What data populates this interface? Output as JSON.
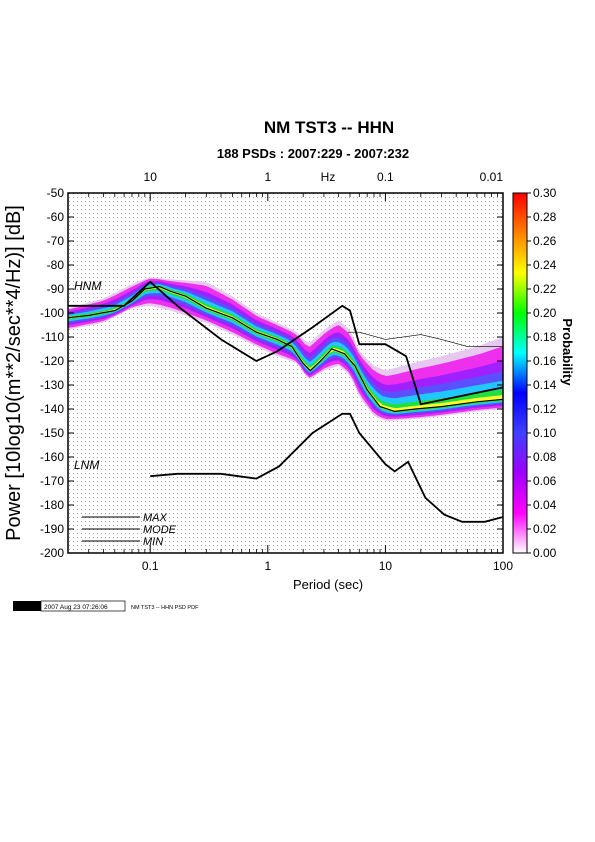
{
  "chart_data": {
    "type": "heatmap",
    "title": "NM TST3 -- HHN",
    "subtitle": "188 PSDs : 2007:229 - 2007:232",
    "xlabel": "Period (sec)",
    "ylabel": "Power [10log10(m**2/sec**4/Hz)] [dB]",
    "x_scale": "log",
    "xlim": [
      0.02,
      100
    ],
    "ylim": [
      -200,
      -50
    ],
    "x_ticks": [
      0.1,
      1,
      10,
      100
    ],
    "x_tick_labels": [
      "0.1",
      "1",
      "10",
      "100"
    ],
    "y_ticks": [
      -200,
      -190,
      -180,
      -170,
      -160,
      -150,
      -140,
      -130,
      -120,
      -110,
      -100,
      -90,
      -80,
      -70,
      -60,
      -50
    ],
    "y_tick_labels": [
      "-200",
      "-190",
      "-180",
      "-170",
      "-160",
      "-150",
      "-140",
      "-130",
      "-120",
      "-110",
      "-100",
      "-90",
      "-80",
      "-70",
      "-60",
      "-50"
    ],
    "top_axis": {
      "label": "Hz",
      "ticks": [
        10,
        1,
        0.1,
        0.01
      ],
      "tick_labels": [
        "10",
        "1",
        "0.1",
        "0.01"
      ]
    },
    "grid": true,
    "colorbar": {
      "label": "Probability",
      "min": 0.0,
      "max": 0.3,
      "ticks": [
        "0.30",
        "0.28",
        "0.26",
        "0.24",
        "0.22",
        "0.20",
        "0.18",
        "0.16",
        "0.14",
        "0.12",
        "0.10",
        "0.08",
        "0.06",
        "0.04",
        "0.02",
        "0.00"
      ],
      "colors": [
        "#ffffff",
        "#ff00ff",
        "#a000ff",
        "#4040ff",
        "#0000ff",
        "#00ffff",
        "#00ff00",
        "#ffff00",
        "#ff8000",
        "#ff0000"
      ]
    },
    "model_labels": {
      "high": "HNM",
      "low": "LNM"
    },
    "legend": [
      {
        "name": "MAX",
        "color": "#0000cc"
      },
      {
        "name": "MODE",
        "color": "#000000"
      },
      {
        "name": "MIN",
        "color": "#cc0000"
      }
    ],
    "legend_position": "bottom-left",
    "nhnm": [
      [
        0.02,
        -97
      ],
      [
        0.06,
        -97
      ],
      [
        0.1,
        -87
      ],
      [
        0.17,
        -97
      ],
      [
        0.4,
        -111
      ],
      [
        0.8,
        -120
      ],
      [
        1.2,
        -116
      ],
      [
        2.4,
        -106
      ],
      [
        4.3,
        -97
      ],
      [
        5.0,
        -99
      ],
      [
        6.0,
        -113
      ],
      [
        10,
        -113
      ],
      [
        15,
        -118
      ],
      [
        20,
        -138
      ],
      [
        100,
        -131
      ]
    ],
    "nlnm": [
      [
        0.1,
        -168
      ],
      [
        0.17,
        -167
      ],
      [
        0.4,
        -167
      ],
      [
        0.8,
        -169
      ],
      [
        1.24,
        -164
      ],
      [
        2.4,
        -150
      ],
      [
        4.3,
        -142
      ],
      [
        5.0,
        -142
      ],
      [
        6.0,
        -150
      ],
      [
        10,
        -163
      ],
      [
        12,
        -166
      ],
      [
        15.6,
        -162
      ],
      [
        21.9,
        -177
      ],
      [
        31.6,
        -184
      ],
      [
        45,
        -187
      ],
      [
        70,
        -187
      ],
      [
        100,
        -185
      ]
    ],
    "mode": [
      [
        0.02,
        -102
      ],
      [
        0.03,
        -101
      ],
      [
        0.05,
        -99
      ],
      [
        0.07,
        -95
      ],
      [
        0.09,
        -90
      ],
      [
        0.12,
        -89
      ],
      [
        0.15,
        -91
      ],
      [
        0.2,
        -93
      ],
      [
        0.3,
        -98
      ],
      [
        0.5,
        -102
      ],
      [
        0.8,
        -108
      ],
      [
        1.2,
        -111
      ],
      [
        1.6,
        -114
      ],
      [
        2.0,
        -121
      ],
      [
        2.3,
        -124
      ],
      [
        2.8,
        -120
      ],
      [
        3.5,
        -115
      ],
      [
        4.5,
        -117
      ],
      [
        5.5,
        -122
      ],
      [
        7,
        -132
      ],
      [
        9,
        -139
      ],
      [
        12,
        -141
      ],
      [
        18,
        -140
      ],
      [
        30,
        -139
      ],
      [
        60,
        -137
      ],
      [
        100,
        -136
      ]
    ],
    "band_upper": [
      [
        0.02,
        -98
      ],
      [
        0.04,
        -94
      ],
      [
        0.07,
        -88
      ],
      [
        0.1,
        -85
      ],
      [
        0.15,
        -86
      ],
      [
        0.3,
        -87
      ],
      [
        0.5,
        -93
      ],
      [
        0.8,
        -100
      ],
      [
        1.2,
        -104
      ],
      [
        1.8,
        -108
      ],
      [
        2.2,
        -113
      ],
      [
        3,
        -107
      ],
      [
        4,
        -103
      ],
      [
        5,
        -107
      ],
      [
        6,
        -116
      ],
      [
        8,
        -122
      ],
      [
        10,
        -124
      ],
      [
        20,
        -120
      ],
      [
        30,
        -118
      ],
      [
        60,
        -114
      ],
      [
        100,
        -110
      ]
    ],
    "band_lower": [
      [
        0.02,
        -107
      ],
      [
        0.04,
        -104
      ],
      [
        0.07,
        -98
      ],
      [
        0.1,
        -97
      ],
      [
        0.15,
        -99
      ],
      [
        0.3,
        -104
      ],
      [
        0.5,
        -109
      ],
      [
        0.8,
        -114
      ],
      [
        1.2,
        -118
      ],
      [
        1.8,
        -121
      ],
      [
        2.2,
        -128
      ],
      [
        3,
        -124
      ],
      [
        4,
        -122
      ],
      [
        5,
        -126
      ],
      [
        6,
        -135
      ],
      [
        8,
        -143
      ],
      [
        10,
        -145
      ],
      [
        20,
        -144
      ],
      [
        30,
        -143
      ],
      [
        60,
        -141
      ],
      [
        100,
        -140
      ]
    ],
    "max_line": [
      [
        4.8,
        -108
      ],
      [
        6,
        -108
      ],
      [
        10,
        -111
      ],
      [
        20,
        -109
      ],
      [
        30,
        -111
      ],
      [
        50,
        -114
      ],
      [
        100,
        -114
      ]
    ]
  },
  "footer": {
    "gmt_logo": "GMT",
    "timestamp": "2007 Aug 23 07:26:06",
    "caption": "NM TST3 -- HHN PSD PDF"
  }
}
